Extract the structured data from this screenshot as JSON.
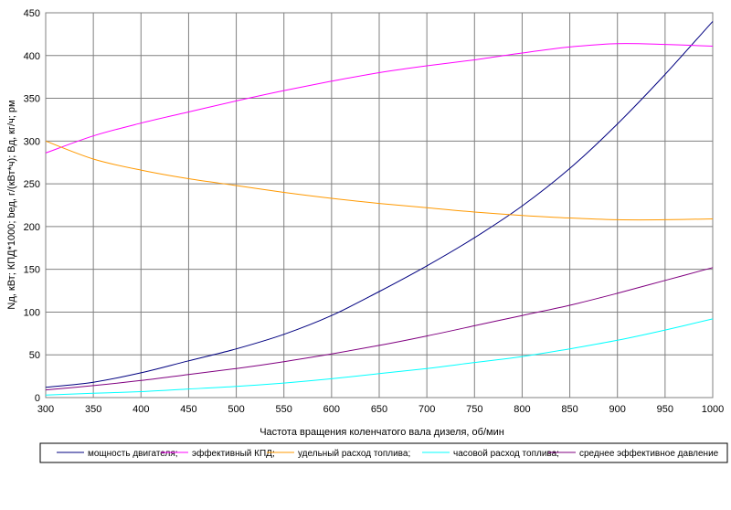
{
  "chart_data": {
    "type": "line",
    "xlabel": "Частота вращения коленчатого вала дизеля, об/мин",
    "ylabel": "Nд, кВт;  КПД*1000;  bед, г/(кВт*ч);  Bд, кг/ч;  pм",
    "xlim": [
      300,
      1000
    ],
    "ylim": [
      0,
      450
    ],
    "x_ticks": [
      300,
      350,
      400,
      450,
      500,
      550,
      600,
      650,
      700,
      750,
      800,
      850,
      900,
      950,
      1000
    ],
    "y_ticks": [
      0,
      50,
      100,
      150,
      200,
      250,
      300,
      350,
      400,
      450
    ],
    "grid": true,
    "legend_position": "bottom",
    "x": [
      300,
      350,
      400,
      450,
      500,
      550,
      600,
      650,
      700,
      750,
      800,
      850,
      900,
      950,
      1000
    ],
    "series": [
      {
        "name": "мощность двигателя;",
        "color": "#000080",
        "values": [
          12,
          18,
          29,
          43,
          57,
          74,
          96,
          124,
          154,
          187,
          224,
          268,
          320,
          378,
          440
        ]
      },
      {
        "name": "эффективный КПД;",
        "color": "#ff00ff",
        "values": [
          286,
          306,
          321,
          334,
          347,
          359,
          370,
          380,
          388,
          395,
          403,
          410,
          414,
          413,
          411
        ]
      },
      {
        "name": "удельный расход топлива;",
        "color": "#ff9900",
        "values": [
          300,
          279,
          266,
          256,
          248,
          240,
          233,
          227,
          222,
          217,
          213,
          210,
          208,
          208,
          209
        ]
      },
      {
        "name": "часовой расход топлива;",
        "color": "#00ffff",
        "values": [
          3,
          5,
          7,
          10,
          13,
          17,
          22,
          28,
          34,
          41,
          48,
          57,
          67,
          79,
          92
        ]
      },
      {
        "name": "среднее эффективное давление",
        "color": "#800080",
        "values": [
          9,
          14,
          20,
          27,
          34,
          42,
          51,
          61,
          72,
          84,
          96,
          108,
          122,
          137,
          152
        ]
      }
    ]
  }
}
